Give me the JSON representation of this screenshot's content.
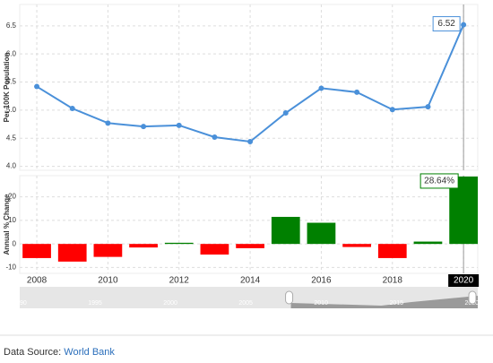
{
  "chart_data": [
    {
      "type": "line",
      "y_label": "Per 100K Population",
      "x": [
        2008,
        2009,
        2010,
        2011,
        2012,
        2013,
        2014,
        2015,
        2016,
        2017,
        2018,
        2019,
        2020
      ],
      "values": [
        5.42,
        5.03,
        4.77,
        4.71,
        4.73,
        4.52,
        4.44,
        4.95,
        5.39,
        5.32,
        5.01,
        5.06,
        6.52
      ],
      "color": "#4a90d9",
      "xlim": [
        2007.52,
        2020.4
      ],
      "ylim": [
        3.93,
        6.88
      ],
      "yticks": [
        {
          "value": 4,
          "label": "4.0"
        },
        4.5,
        {
          "value": 5,
          "label": "5.0"
        },
        5.5,
        {
          "value": 6,
          "label": "6.0"
        },
        6.5
      ],
      "grid": true
    },
    {
      "type": "bar",
      "y_label": "Annual % Change",
      "x": [
        2008,
        2009,
        2010,
        2011,
        2012,
        2013,
        2014,
        2015,
        2016,
        2017,
        2018,
        2019,
        2020
      ],
      "values": [
        -6,
        -7.5,
        -5.5,
        -1.5,
        0.5,
        -4.5,
        -1.8,
        11.5,
        9,
        -1.3,
        -6,
        1,
        28.64
      ],
      "value_labels": [
        null,
        null,
        null,
        null,
        null,
        null,
        null,
        null,
        null,
        null,
        null,
        null,
        "28.64%"
      ],
      "positive_color": "#008000",
      "negative_color": "#ff0000",
      "xlim": [
        2007.52,
        2020.4
      ],
      "ylim": [
        -12.5,
        29
      ],
      "yticks": [
        -10,
        0,
        10,
        20
      ],
      "xticks": [
        2008,
        2010,
        2012,
        2014,
        2016,
        2018,
        2020
      ],
      "highlight_last_tick": true,
      "grid": true
    }
  ],
  "navigator": {
    "xlim": [
      1990,
      2020.4
    ],
    "xticks": [
      1990,
      1995,
      2000,
      2005,
      2010,
      2015,
      2020
    ]
  },
  "footer": {
    "label": "Data Source:",
    "link": "World Bank"
  }
}
